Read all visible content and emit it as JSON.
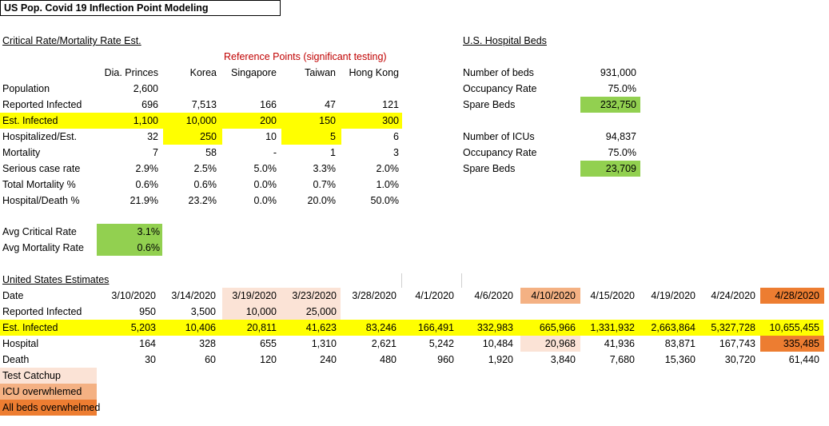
{
  "colors": {
    "yellow": "#ffff00",
    "green": "#92d050",
    "test_catchup": "#fbe3d6",
    "icu_overwhelmed": "#f4b183",
    "all_beds_overwhelmed": "#ed7d31",
    "reference_text": "#c00000"
  },
  "title": "US Pop. Covid 19 Inflection Point Modeling",
  "critical": {
    "heading": "Critical Rate/Mortality Rate Est.",
    "reference_label": "Reference Points (significant testing)",
    "columns": [
      "Dia. Princes",
      "Korea",
      "Singapore",
      "Taiwan",
      "Hong Kong"
    ],
    "rows": [
      {
        "label": "Population",
        "values": [
          "2,600",
          "",
          "",
          "",
          ""
        ]
      },
      {
        "label": "Reported Infected",
        "values": [
          "696",
          "7,513",
          "166",
          "47",
          "121"
        ]
      },
      {
        "label": "Est. Infected",
        "values": [
          "1,100",
          "10,000",
          "200",
          "150",
          "300"
        ]
      },
      {
        "label": "Hospitalized/Est.",
        "values": [
          "32",
          "250",
          "10",
          "5",
          "6"
        ]
      },
      {
        "label": "Mortality",
        "values": [
          "7",
          "58",
          "-",
          "1",
          "3"
        ]
      },
      {
        "label": "Serious case rate",
        "values": [
          "2.9%",
          "2.5%",
          "5.0%",
          "3.3%",
          "2.0%"
        ]
      },
      {
        "label": "Total Mortality %",
        "values": [
          "0.6%",
          "0.6%",
          "0.0%",
          "0.7%",
          "1.0%"
        ]
      },
      {
        "label": "Hospital/Death %",
        "values": [
          "21.9%",
          "23.2%",
          "0.0%",
          "20.0%",
          "50.0%"
        ]
      }
    ],
    "avg": [
      {
        "label": "Avg Critical Rate",
        "value": "3.1%"
      },
      {
        "label": "Avg Mortality Rate",
        "value": "0.6%"
      }
    ]
  },
  "beds": {
    "heading": "U.S. Hospital Beds",
    "rows": [
      {
        "label": "Number of beds",
        "value": "931,000"
      },
      {
        "label": "Occupancy Rate",
        "value": "75.0%"
      },
      {
        "label": "Spare Beds",
        "value": "232,750"
      },
      {
        "label": "Number of ICUs",
        "value": "94,837"
      },
      {
        "label": "Occupancy Rate",
        "value": "75.0%"
      },
      {
        "label": "Spare Beds",
        "value": "23,709"
      }
    ]
  },
  "us": {
    "heading": "United States Estimates",
    "date_label": "Date",
    "dates": [
      "3/10/2020",
      "3/14/2020",
      "3/19/2020",
      "3/23/2020",
      "3/28/2020",
      "4/1/2020",
      "4/6/2020",
      "4/10/2020",
      "4/15/2020",
      "4/19/2020",
      "4/24/2020",
      "4/28/2020"
    ],
    "rows": [
      {
        "label": "Reported Infected",
        "values": [
          "950",
          "3,500",
          "10,000",
          "25,000",
          "",
          "",
          "",
          "",
          "",
          "",
          "",
          ""
        ]
      },
      {
        "label": "Est. Infected",
        "values": [
          "5,203",
          "10,406",
          "20,811",
          "41,623",
          "83,246",
          "166,491",
          "332,983",
          "665,966",
          "1,331,932",
          "2,663,864",
          "5,327,728",
          "10,655,455"
        ]
      },
      {
        "label": "Hospital",
        "values": [
          "164",
          "328",
          "655",
          "1,310",
          "2,621",
          "5,242",
          "10,484",
          "20,968",
          "41,936",
          "83,871",
          "167,743",
          "335,485"
        ]
      },
      {
        "label": "Death",
        "values": [
          "30",
          "60",
          "120",
          "240",
          "480",
          "960",
          "1,920",
          "3,840",
          "7,680",
          "15,360",
          "30,720",
          "61,440"
        ]
      }
    ]
  },
  "legend": [
    {
      "label": "Test Catchup"
    },
    {
      "label": "ICU overwhlemed"
    },
    {
      "label": "All beds overwhelmed"
    }
  ]
}
